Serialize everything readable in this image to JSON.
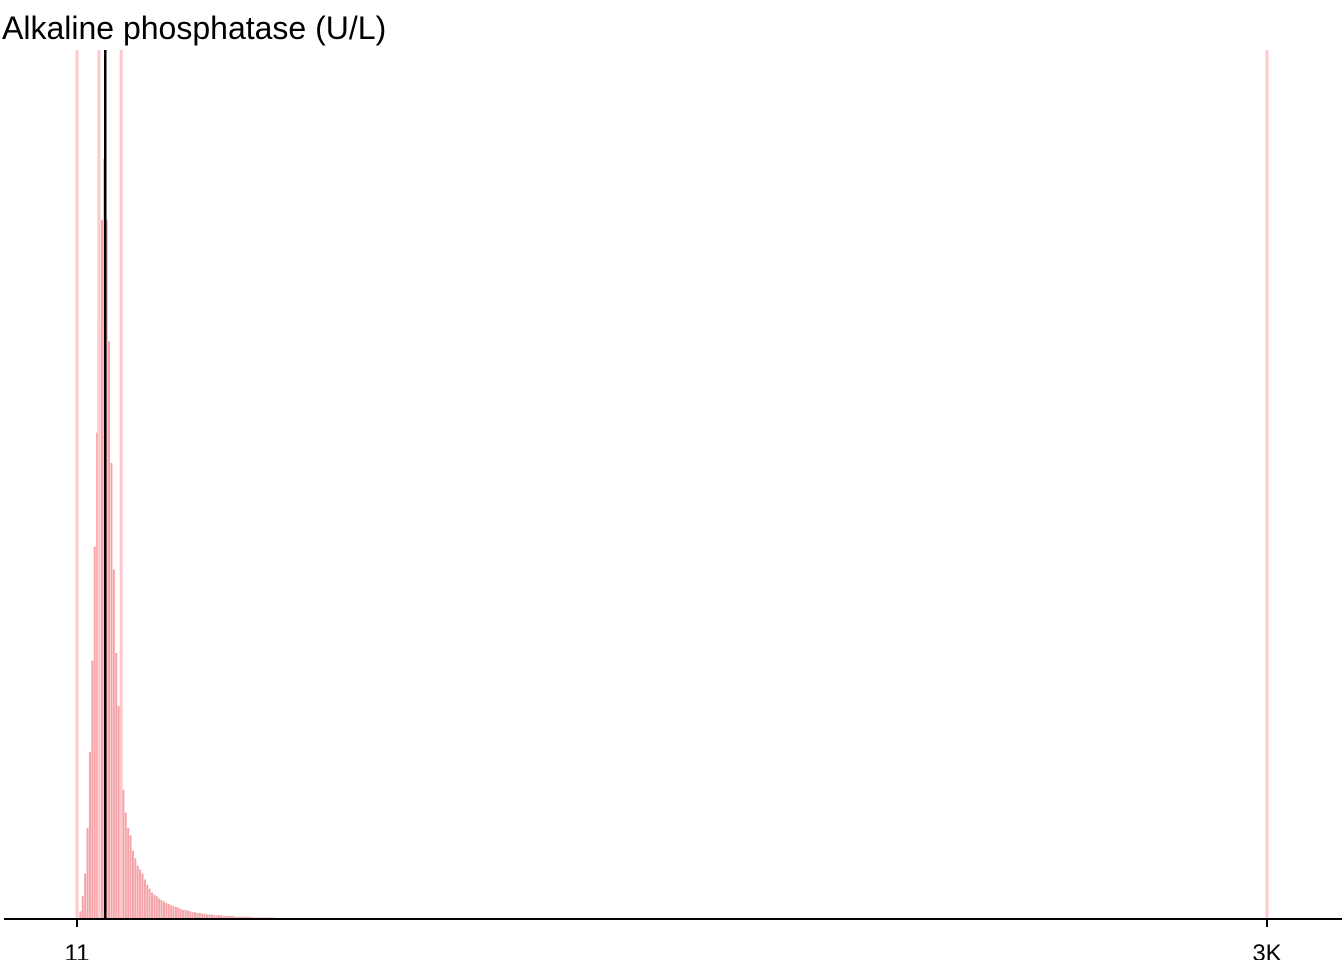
{
  "chart_data": {
    "type": "histogram",
    "title": "Alkaline phosphatase (U/L)",
    "xlabel": "",
    "ylabel": "",
    "xlim": [
      11,
      3000
    ],
    "x_tick_labels": [
      "11",
      "3K"
    ],
    "x_tick_values": [
      11,
      3000
    ],
    "y_axis_shown": false,
    "grid": false,
    "median_line": 82,
    "reference_lines": [
      11,
      66,
      122,
      3000
    ],
    "bin_width": 6,
    "bins": {
      "start": 11,
      "relative_counts": [
        0.0,
        0.01,
        0.03,
        0.06,
        0.12,
        0.22,
        0.34,
        0.49,
        0.64,
        0.78,
        0.92,
        1.0,
        0.92,
        0.76,
        0.6,
        0.46,
        0.35,
        0.28,
        0.22,
        0.17,
        0.14,
        0.12,
        0.11,
        0.09,
        0.08,
        0.07,
        0.065,
        0.06,
        0.052,
        0.045,
        0.04,
        0.035,
        0.032,
        0.03,
        0.027,
        0.025,
        0.023,
        0.021,
        0.02,
        0.018,
        0.017,
        0.016,
        0.015,
        0.013,
        0.012,
        0.012,
        0.011,
        0.01,
        0.009,
        0.009,
        0.008,
        0.008,
        0.007,
        0.007,
        0.006,
        0.006,
        0.006,
        0.005,
        0.005,
        0.005,
        0.005,
        0.004,
        0.004,
        0.004,
        0.004,
        0.004,
        0.003,
        0.003,
        0.003,
        0.003,
        0.003,
        0.003,
        0.003,
        0.002,
        0.002,
        0.002,
        0.002,
        0.002,
        0.002,
        0.002,
        0.002,
        0.002,
        0.002,
        0.001,
        0.001,
        0.001,
        0.001,
        0.001,
        0.001,
        0.001,
        0.001,
        0.001,
        0.001,
        0.001,
        0.001,
        0.001,
        0.001,
        0.001,
        0.001,
        0.001
      ]
    },
    "colors": {
      "bars": "#f4a4a8",
      "bars_highlight": "#ef8a90",
      "reference_line": "#ffc8cc",
      "median_line": "#000000",
      "axis": "#000000"
    }
  }
}
